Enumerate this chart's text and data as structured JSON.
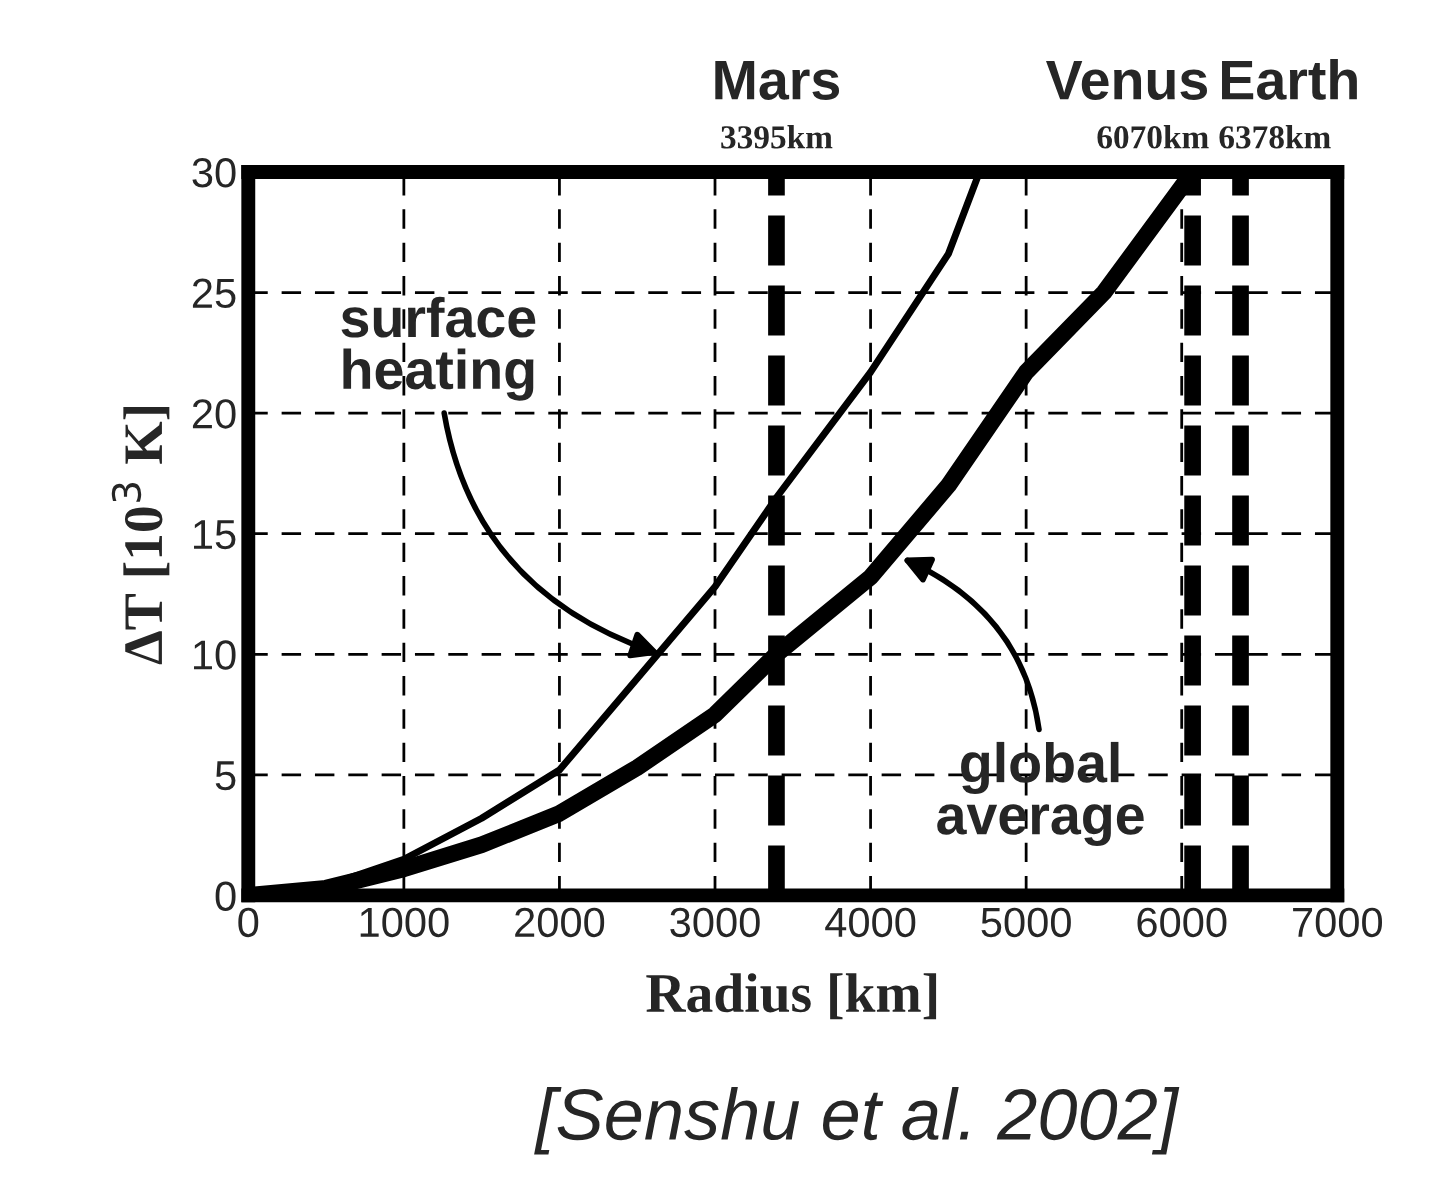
{
  "chart_data": {
    "type": "line",
    "xlabel": "Radius [km]",
    "ylabel": "ΔT [10$^{3}$ K]",
    "xlim": [
      0,
      7000
    ],
    "xticks": [
      0,
      1000,
      2000,
      3000,
      4000,
      5000,
      6000,
      7000
    ],
    "ylim": [
      0,
      30
    ],
    "yticks": [
      0,
      5,
      10,
      15,
      20,
      25,
      30
    ],
    "grid": true,
    "line_style": "solid",
    "marker": "none",
    "series": [
      {
        "color": "#000000",
        "x": [
          0,
          500,
          1000,
          1500,
          2000,
          2500,
          3000,
          3395,
          4000,
          4500,
          4700
        ],
        "values": [
          0,
          0.4,
          1.5,
          3.2,
          5.2,
          9,
          12.8,
          16.5,
          21.7,
          26.6,
          30
        ]
      },
      {
        "color": "#000000",
        "x": [
          0,
          500,
          1000,
          1500,
          2000,
          2500,
          3000,
          3395,
          4000,
          4500,
          5000,
          5500,
          6070
        ],
        "values": [
          0,
          0.3,
          1.1,
          2.1,
          3.4,
          5.3,
          7.5,
          10,
          13.2,
          17,
          21.7,
          25,
          30
        ]
      }
    ],
    "ref_lines": [
      {
        "axis": "x",
        "value": 3395,
        "label": "Mars\n3395km",
        "color": "#000000",
        "line_style": "dashed"
      },
      {
        "axis": "x",
        "value": 6070,
        "label": "Venus\n6070km",
        "color": "#000000",
        "line_style": "dashed"
      },
      {
        "axis": "x",
        "value": 6378,
        "label": "Earth\n6378km",
        "color": "#000000",
        "line_style": "dashed"
      }
    ],
    "annotations": [
      {
        "text": "surface\nheating",
        "x": 2650,
        "y": 10
      },
      {
        "text": "global\naverage",
        "x": 4200,
        "y": 14
      },
      "[Senshu et al. 2002]"
    ]
  }
}
